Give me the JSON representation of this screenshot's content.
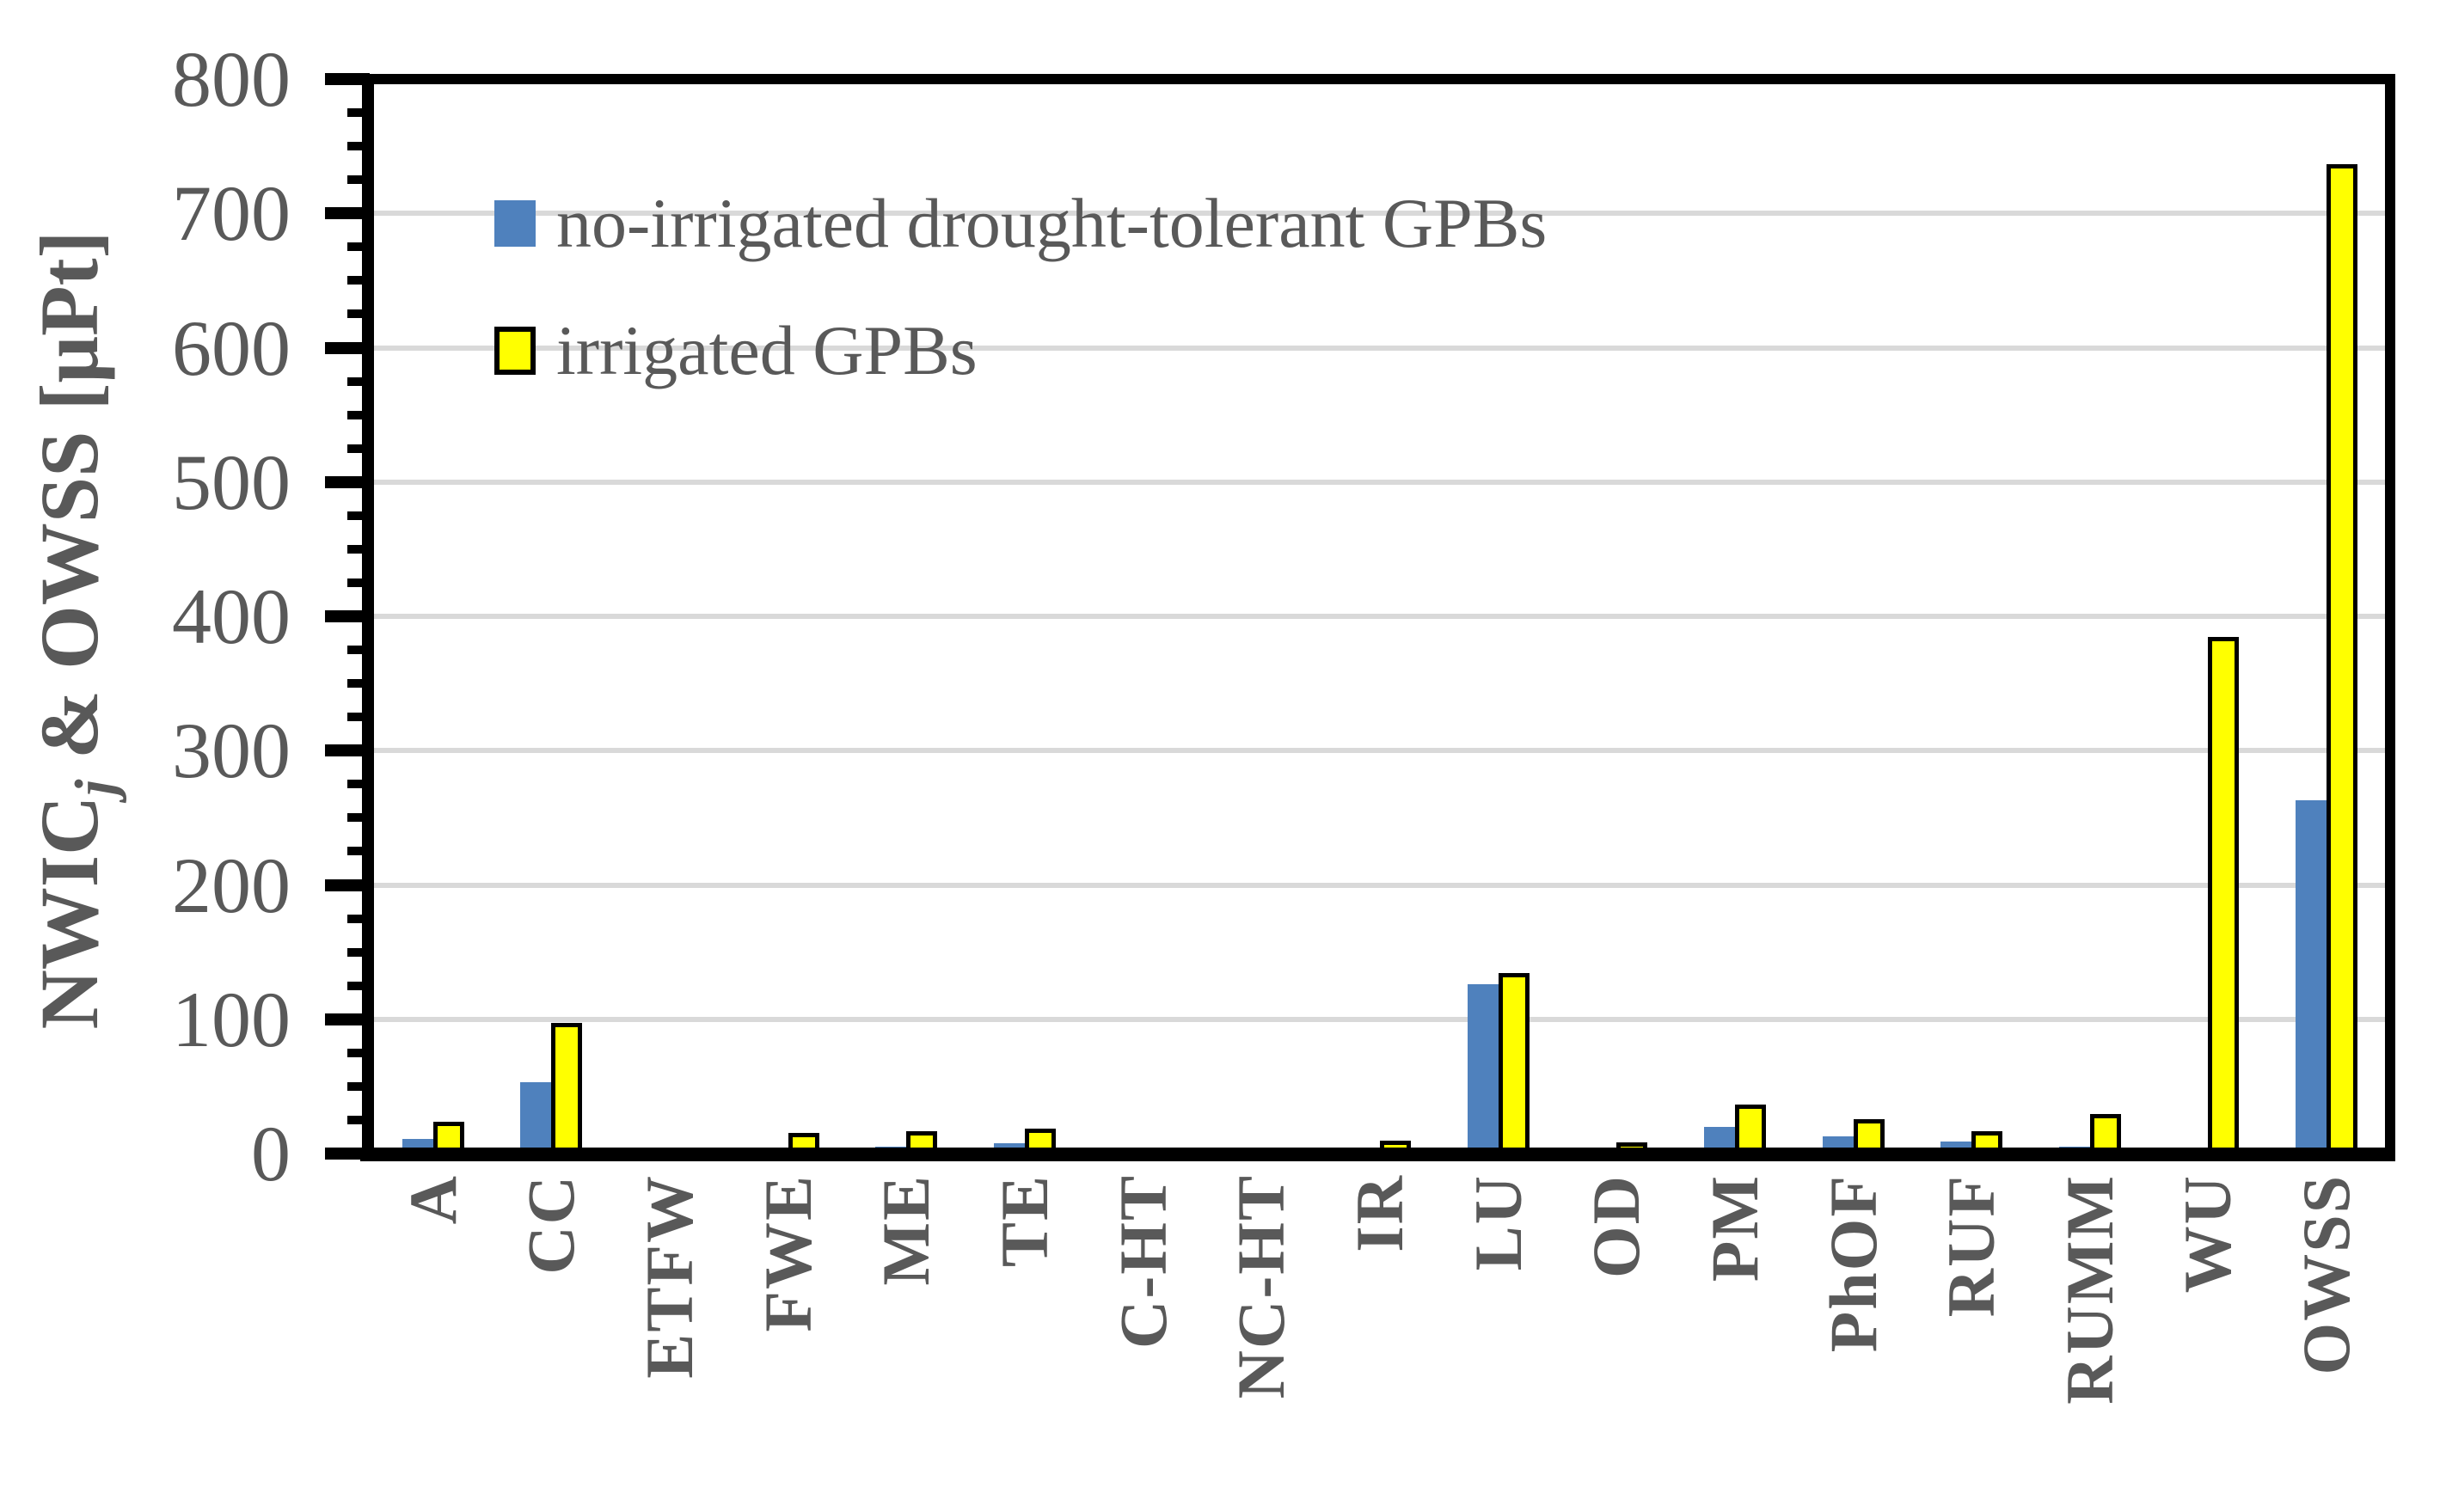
{
  "chart_data": {
    "type": "bar",
    "categories": [
      "A",
      "CC",
      "ETFW",
      "FWE",
      "ME",
      "TE",
      "C-HT",
      "NC-HT",
      "IR",
      "LU",
      "OD",
      "PM",
      "PhOF",
      "RUF",
      "RUMM",
      "WU",
      "OWSS"
    ],
    "series": [
      {
        "name": "no-irrigated drought-tolerant GPBs",
        "color": "#4F81BD",
        "border": null,
        "values": [
          11,
          53,
          0,
          4,
          5,
          8,
          0,
          0,
          1,
          126,
          1,
          20,
          13,
          9,
          5,
          3,
          263
        ]
      },
      {
        "name": "irrigated GPBs",
        "color": "#FFFF00",
        "border": "#000000",
        "values": [
          17,
          91,
          0,
          9,
          10,
          12,
          0,
          0,
          3,
          128,
          2,
          30,
          19,
          10,
          23,
          378,
          730
        ]
      }
    ],
    "title": "",
    "xlabel": "",
    "ylabel_prefix": "NWIC",
    "ylabel_sub": "j",
    "ylabel_suffix": " & OWSS [μPt]",
    "ylim": [
      0,
      800
    ],
    "ytick_step": 100,
    "yminor_step": 25,
    "ytick_labels": [
      "0",
      "100",
      "200",
      "300",
      "400",
      "500",
      "600",
      "700",
      "800"
    ],
    "grid": true,
    "gridline_color": "#D9D9D9",
    "axis_color": "#000000",
    "label_color": "#595959",
    "legend_position": "inside-top-left"
  }
}
